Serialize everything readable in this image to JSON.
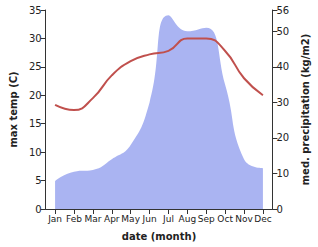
{
  "chart_data": {
    "type": "line",
    "xlabel": "date (month)",
    "ylabel": "max temp (C)",
    "y2label": "med. precipitation (kg/m2)",
    "categories": [
      "Jan",
      "Feb",
      "Mar",
      "Apr",
      "May",
      "Jun",
      "Jul",
      "Aug",
      "Sep",
      "Oct",
      "Nov",
      "Dec"
    ],
    "series": [
      {
        "name": "med. precipitation",
        "type": "area",
        "color": "#aab4f2",
        "axis": "y2",
        "values": [
          7.9,
          10.5,
          11,
          14,
          18,
          30,
          54.5,
          50,
          51,
          35,
          14,
          11.5
        ]
      },
      {
        "name": "max temp",
        "type": "line",
        "color": "#c0504d",
        "values": [
          18.3,
          17.4,
          19.5,
          23.5,
          26,
          27.2,
          27.8,
          30,
          30,
          27.8,
          23,
          20
        ]
      }
    ],
    "ylim": [
      0,
      35
    ],
    "yticks": [
      0,
      5,
      10,
      15,
      20,
      25,
      30,
      35
    ],
    "y2lim": [
      0,
      56
    ],
    "y2ticks": [
      0,
      10,
      20,
      30,
      40,
      50
    ],
    "grid": false
  }
}
